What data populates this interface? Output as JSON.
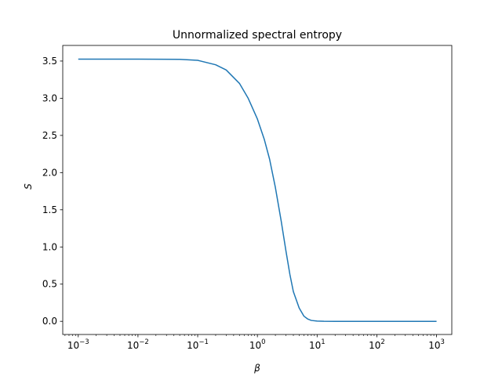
{
  "chart_data": {
    "type": "line",
    "title": "Unnormalized spectral entropy",
    "xlabel": "β",
    "ylabel": "S",
    "xscale": "log",
    "xlim": [
      0.00055,
      1800
    ],
    "ylim": [
      -0.177,
      3.71
    ],
    "grid": false,
    "x_ticks": [
      {
        "value": 0.001,
        "base": "10",
        "exp": "−3"
      },
      {
        "value": 0.01,
        "base": "10",
        "exp": "−2"
      },
      {
        "value": 0.1,
        "base": "10",
        "exp": "−1"
      },
      {
        "value": 1,
        "base": "10",
        "exp": "0"
      },
      {
        "value": 10,
        "base": "10",
        "exp": "1"
      },
      {
        "value": 100,
        "base": "10",
        "exp": "2"
      },
      {
        "value": 1000,
        "base": "10",
        "exp": "3"
      }
    ],
    "y_ticks": [
      {
        "value": 0.0,
        "label": "0.0"
      },
      {
        "value": 0.5,
        "label": "0.5"
      },
      {
        "value": 1.0,
        "label": "1.0"
      },
      {
        "value": 1.5,
        "label": "1.5"
      },
      {
        "value": 2.0,
        "label": "2.0"
      },
      {
        "value": 2.5,
        "label": "2.5"
      },
      {
        "value": 3.0,
        "label": "3.0"
      },
      {
        "value": 3.5,
        "label": "3.5"
      }
    ],
    "series": [
      {
        "color": "#1f77b4",
        "x": [
          0.001,
          0.01,
          0.05,
          0.1,
          0.2,
          0.3,
          0.5,
          0.7,
          1.0,
          1.3,
          1.6,
          2.0,
          2.5,
          3.0,
          3.5,
          4.0,
          5.0,
          6.0,
          7.0,
          8.0,
          10.0,
          13.0,
          20.0,
          50.0,
          100.0,
          1000.0
        ],
        "y": [
          3.526,
          3.526,
          3.523,
          3.51,
          3.45,
          3.38,
          3.2,
          3.0,
          2.72,
          2.45,
          2.18,
          1.8,
          1.35,
          0.95,
          0.63,
          0.4,
          0.18,
          0.07,
          0.03,
          0.012,
          0.004,
          0.001,
          0.0,
          0.0,
          0.0,
          0.0
        ]
      }
    ]
  }
}
